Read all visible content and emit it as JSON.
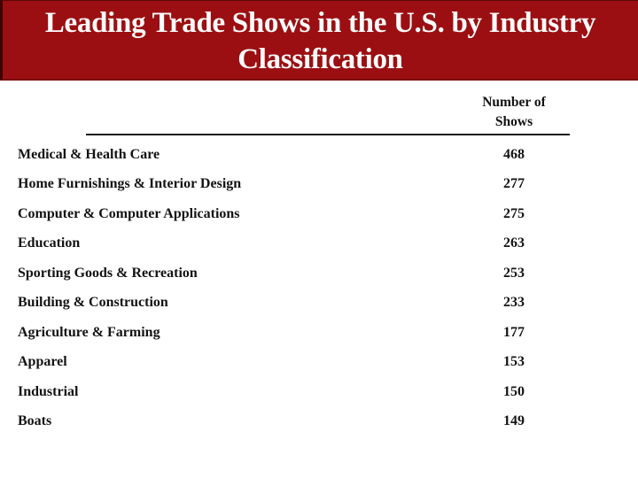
{
  "title": {
    "line1": "Leading Trade Shows in the U.S. by Industry",
    "line2": "Classification"
  },
  "table": {
    "value_header_line1": "Number of",
    "value_header_line2": "Shows",
    "rows": [
      {
        "label": "Medical & Health Care",
        "value": "468"
      },
      {
        "label": "Home Furnishings & Interior Design",
        "value": "277"
      },
      {
        "label": "Computer & Computer Applications",
        "value": "275"
      },
      {
        "label": "Education",
        "value": "263"
      },
      {
        "label": "Sporting Goods & Recreation",
        "value": "253"
      },
      {
        "label": "Building & Construction",
        "value": "233"
      },
      {
        "label": "Agriculture & Farming",
        "value": "177"
      },
      {
        "label": "Apparel",
        "value": "153"
      },
      {
        "label": "Industrial",
        "value": "150"
      },
      {
        "label": "Boats",
        "value": "149"
      }
    ]
  },
  "colors": {
    "header_bg": "#9B0F12",
    "header_text": "#FCFCFC",
    "body_text": "#131313",
    "rule": "#1B1B1B"
  }
}
